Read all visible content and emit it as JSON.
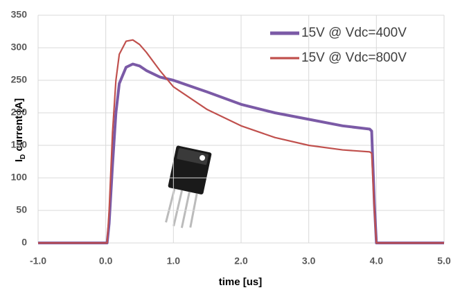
{
  "chart_data": {
    "type": "line",
    "xlabel": "time [us]",
    "ylabel": {
      "main": "I",
      "sub": "D",
      "rest": " current [A]"
    },
    "x": [
      -1,
      0.02,
      0.05,
      0.1,
      0.15,
      0.2,
      0.3,
      0.4,
      0.5,
      0.6,
      0.8,
      1.0,
      1.5,
      2.0,
      2.5,
      3.0,
      3.5,
      3.9,
      3.93,
      3.97,
      4.0,
      5.0
    ],
    "series": [
      {
        "name": "15V @ Vdc=400V",
        "color": "#7b5aa6",
        "width": 4,
        "values": [
          0,
          0,
          30,
          120,
          200,
          245,
          270,
          275,
          272,
          265,
          255,
          250,
          232,
          213,
          200,
          190,
          180,
          175,
          172,
          60,
          0,
          0
        ]
      },
      {
        "name": "15V @ Vdc=800V",
        "color": "#c0504d",
        "width": 2.2,
        "values": [
          0,
          0,
          50,
          170,
          250,
          290,
          310,
          312,
          305,
          293,
          265,
          240,
          205,
          180,
          162,
          150,
          143,
          140,
          138,
          50,
          0,
          0
        ]
      }
    ],
    "xlim": [
      -1,
      5
    ],
    "xticks": [
      {
        "value": -1,
        "label": "-1.0"
      },
      {
        "value": 0,
        "label": "0.0"
      },
      {
        "value": 1,
        "label": "1.0"
      },
      {
        "value": 2,
        "label": "2.0"
      },
      {
        "value": 3,
        "label": "3.0"
      },
      {
        "value": 4,
        "label": "4.0"
      },
      {
        "value": 5,
        "label": "5.0"
      }
    ],
    "ylim": [
      0,
      350
    ],
    "yticks": [
      0,
      50,
      100,
      150,
      200,
      250,
      300,
      350
    ],
    "grid": true,
    "legend": "top-right"
  }
}
